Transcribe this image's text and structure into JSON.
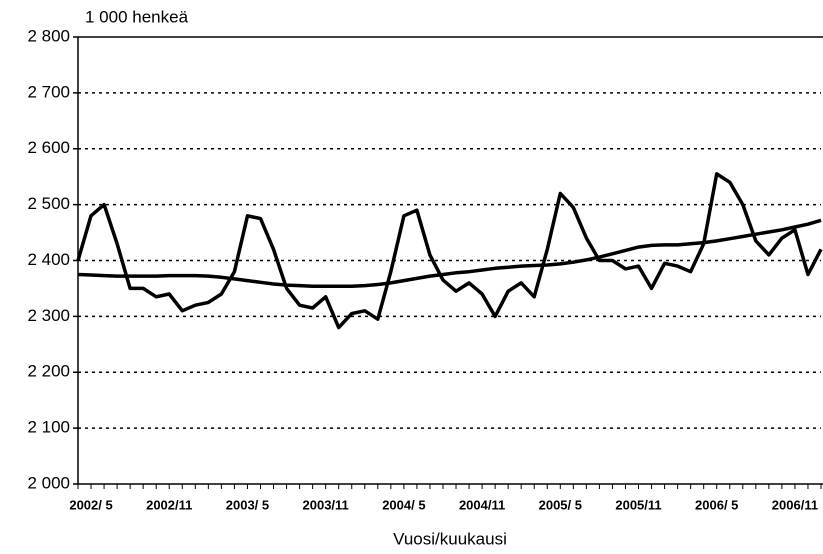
{
  "chart_data": {
    "type": "line",
    "y_unit_label": "1 000 henkeä",
    "x_label": "Vuosi/kuukausi",
    "categories": [
      null,
      "2002/ 5",
      null,
      null,
      null,
      null,
      null,
      "2002/11",
      null,
      null,
      null,
      null,
      null,
      "2003/ 5",
      null,
      null,
      null,
      null,
      null,
      "2003/11",
      null,
      null,
      null,
      null,
      null,
      "2004/ 5",
      null,
      null,
      null,
      null,
      null,
      "2004/11",
      null,
      null,
      null,
      null,
      null,
      "2005/ 5",
      null,
      null,
      null,
      null,
      null,
      "2005/11",
      null,
      null,
      null,
      null,
      null,
      "2006/ 5",
      null,
      null,
      null,
      null,
      null,
      "2006/11",
      null,
      null
    ],
    "series": [
      {
        "color": "#000000",
        "values": [
          2400,
          2480,
          2500,
          2430,
          2350,
          2350,
          2335,
          2340,
          2310,
          2320,
          2325,
          2340,
          2380,
          2480,
          2475,
          2420,
          2350,
          2320,
          2315,
          2335,
          2280,
          2305,
          2310,
          2295,
          2380,
          2480,
          2490,
          2410,
          2365,
          2345,
          2360,
          2340,
          2300,
          2345,
          2360,
          2335,
          2420,
          2520,
          2495,
          2440,
          2400,
          2400,
          2385,
          2390,
          2350,
          2395,
          2390,
          2380,
          2430,
          2555,
          2540,
          2500,
          2435,
          2410,
          2440,
          2455,
          2375,
          2420
        ]
      },
      {
        "color": "#000000",
        "values": [
          2375,
          2374,
          2373,
          2372,
          2372,
          2372,
          2372,
          2373,
          2373,
          2373,
          2372,
          2370,
          2367,
          2364,
          2361,
          2358,
          2356,
          2355,
          2354,
          2354,
          2354,
          2354,
          2355,
          2357,
          2360,
          2364,
          2368,
          2372,
          2375,
          2378,
          2380,
          2383,
          2386,
          2388,
          2390,
          2391,
          2392,
          2394,
          2397,
          2401,
          2406,
          2412,
          2418,
          2424,
          2427,
          2428,
          2428,
          2430,
          2432,
          2435,
          2439,
          2443,
          2447,
          2451,
          2455,
          2460,
          2465,
          2472
        ]
      }
    ],
    "ylim": [
      2000,
      2800
    ],
    "yticks": [
      {
        "value": 2000,
        "label": "2 000"
      },
      {
        "value": 2100,
        "label": "2 100"
      },
      {
        "value": 2200,
        "label": "2 200"
      },
      {
        "value": 2300,
        "label": "2 300"
      },
      {
        "value": 2400,
        "label": "2 400"
      },
      {
        "value": 2500,
        "label": "2 500"
      },
      {
        "value": 2600,
        "label": "2 600"
      },
      {
        "value": 2700,
        "label": "2 700"
      },
      {
        "value": 2800,
        "label": "2 800"
      }
    ],
    "grid": true
  }
}
